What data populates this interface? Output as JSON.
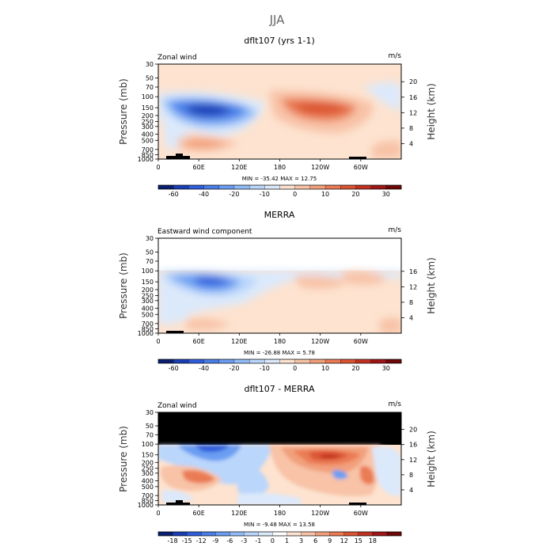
{
  "page_title": "JJA",
  "colors": {
    "wind_scale": [
      "#0a1f6e",
      "#1a3fb5",
      "#2f5fdc",
      "#4a7fe8",
      "#6b9ef2",
      "#93bdf8",
      "#bad6fb",
      "#dbe9fb",
      "#fde3d0",
      "#f8c3a7",
      "#f2a07c",
      "#ea7b55",
      "#db5432",
      "#c23222",
      "#9e1616",
      "#6e0707"
    ],
    "diff_scale": [
      "#0a1f6e",
      "#1a3fb5",
      "#2f5fdc",
      "#4a7fe8",
      "#6b9ef2",
      "#93bdf8",
      "#bad6fb",
      "#dbe9fb",
      "#ffffff",
      "#fde3d0",
      "#f8c3a7",
      "#f2a07c",
      "#ea7b55",
      "#db5432",
      "#c23222",
      "#9e1616",
      "#6e0707"
    ],
    "masked": "#000000"
  },
  "chart_data": [
    {
      "type": "heatmap",
      "title": "dflt107 (yrs 1-1)",
      "subtitle_left": "Zonal wind",
      "units": "m/s",
      "ylabel": "Pressure (mb)",
      "ylabel_right": "Height (km)",
      "x_ticks": [
        "0",
        "60E",
        "120E",
        "180",
        "120W",
        "60W"
      ],
      "y_ticks": [
        "30",
        "50",
        "70",
        "100",
        "150",
        "200",
        "250",
        "300",
        "400",
        "500",
        "700",
        "850",
        "1000"
      ],
      "y_right_ticks": [
        "4",
        "8",
        "12",
        "16",
        "20"
      ],
      "stats": "MIN = -35.42   MAX =  12.75",
      "colorbar_ticks": [
        "-60",
        "-40",
        "-20",
        "-10",
        "0",
        "10",
        "20",
        "30"
      ],
      "mask_above_100mb": false,
      "features": [
        {
          "kind": "jet",
          "center": "60E-90E",
          "pressure": "150-200 mb",
          "value": -35,
          "sign": "easterly"
        },
        {
          "kind": "jet",
          "center": "150W-120W",
          "pressure": "150-200 mb",
          "value": 12,
          "sign": "westerly"
        }
      ]
    },
    {
      "type": "heatmap",
      "title": "MERRA",
      "subtitle_left": "Eastward wind component",
      "units": "m/s",
      "ylabel": "Pressure (mb)",
      "ylabel_right": "Height (km)",
      "x_ticks": [
        "0",
        "60E",
        "120E",
        "180",
        "120W",
        "60W"
      ],
      "y_ticks": [
        "30",
        "50",
        "70",
        "100",
        "150",
        "200",
        "250",
        "300",
        "400",
        "500",
        "700",
        "850",
        "1000"
      ],
      "y_right_ticks": [
        "4",
        "8",
        "12",
        "16"
      ],
      "stats": "MIN = -26.88   MAX =   5.78",
      "colorbar_ticks": [
        "-60",
        "-40",
        "-20",
        "-10",
        "0",
        "10",
        "20",
        "30"
      ],
      "mask_above_100mb": false,
      "features": [
        {
          "kind": "jet",
          "center": "60E-90E",
          "pressure": "150-200 mb",
          "value": -27,
          "sign": "easterly"
        }
      ]
    },
    {
      "type": "heatmap",
      "title": "dflt107 - MERRA",
      "subtitle_left": "Zonal wind",
      "units": "m/s",
      "ylabel": "Pressure (mb)",
      "ylabel_right": "Height (km)",
      "x_ticks": [
        "0",
        "60E",
        "120E",
        "180",
        "120W",
        "60W"
      ],
      "y_ticks": [
        "30",
        "50",
        "70",
        "100",
        "150",
        "200",
        "250",
        "300",
        "400",
        "500",
        "700",
        "850",
        "1000"
      ],
      "y_right_ticks": [
        "4",
        "8",
        "12",
        "16",
        "20"
      ],
      "stats": "MIN =  -9.48   MAX =  13.58",
      "colorbar_ticks": [
        "-18",
        "-15",
        "-12",
        "-9",
        "-6",
        "-3",
        "-1",
        "0",
        "1",
        "3",
        "6",
        "9",
        "12",
        "15",
        "18"
      ],
      "mask_above_100mb": true,
      "features": [
        {
          "kind": "anomaly",
          "center": "160E-120W",
          "pressure": "150-300 mb",
          "value": 13,
          "sign": "positive"
        },
        {
          "kind": "anomaly",
          "center": "30E-60E",
          "pressure": "100-200 mb",
          "value": -9,
          "sign": "negative"
        }
      ]
    }
  ]
}
